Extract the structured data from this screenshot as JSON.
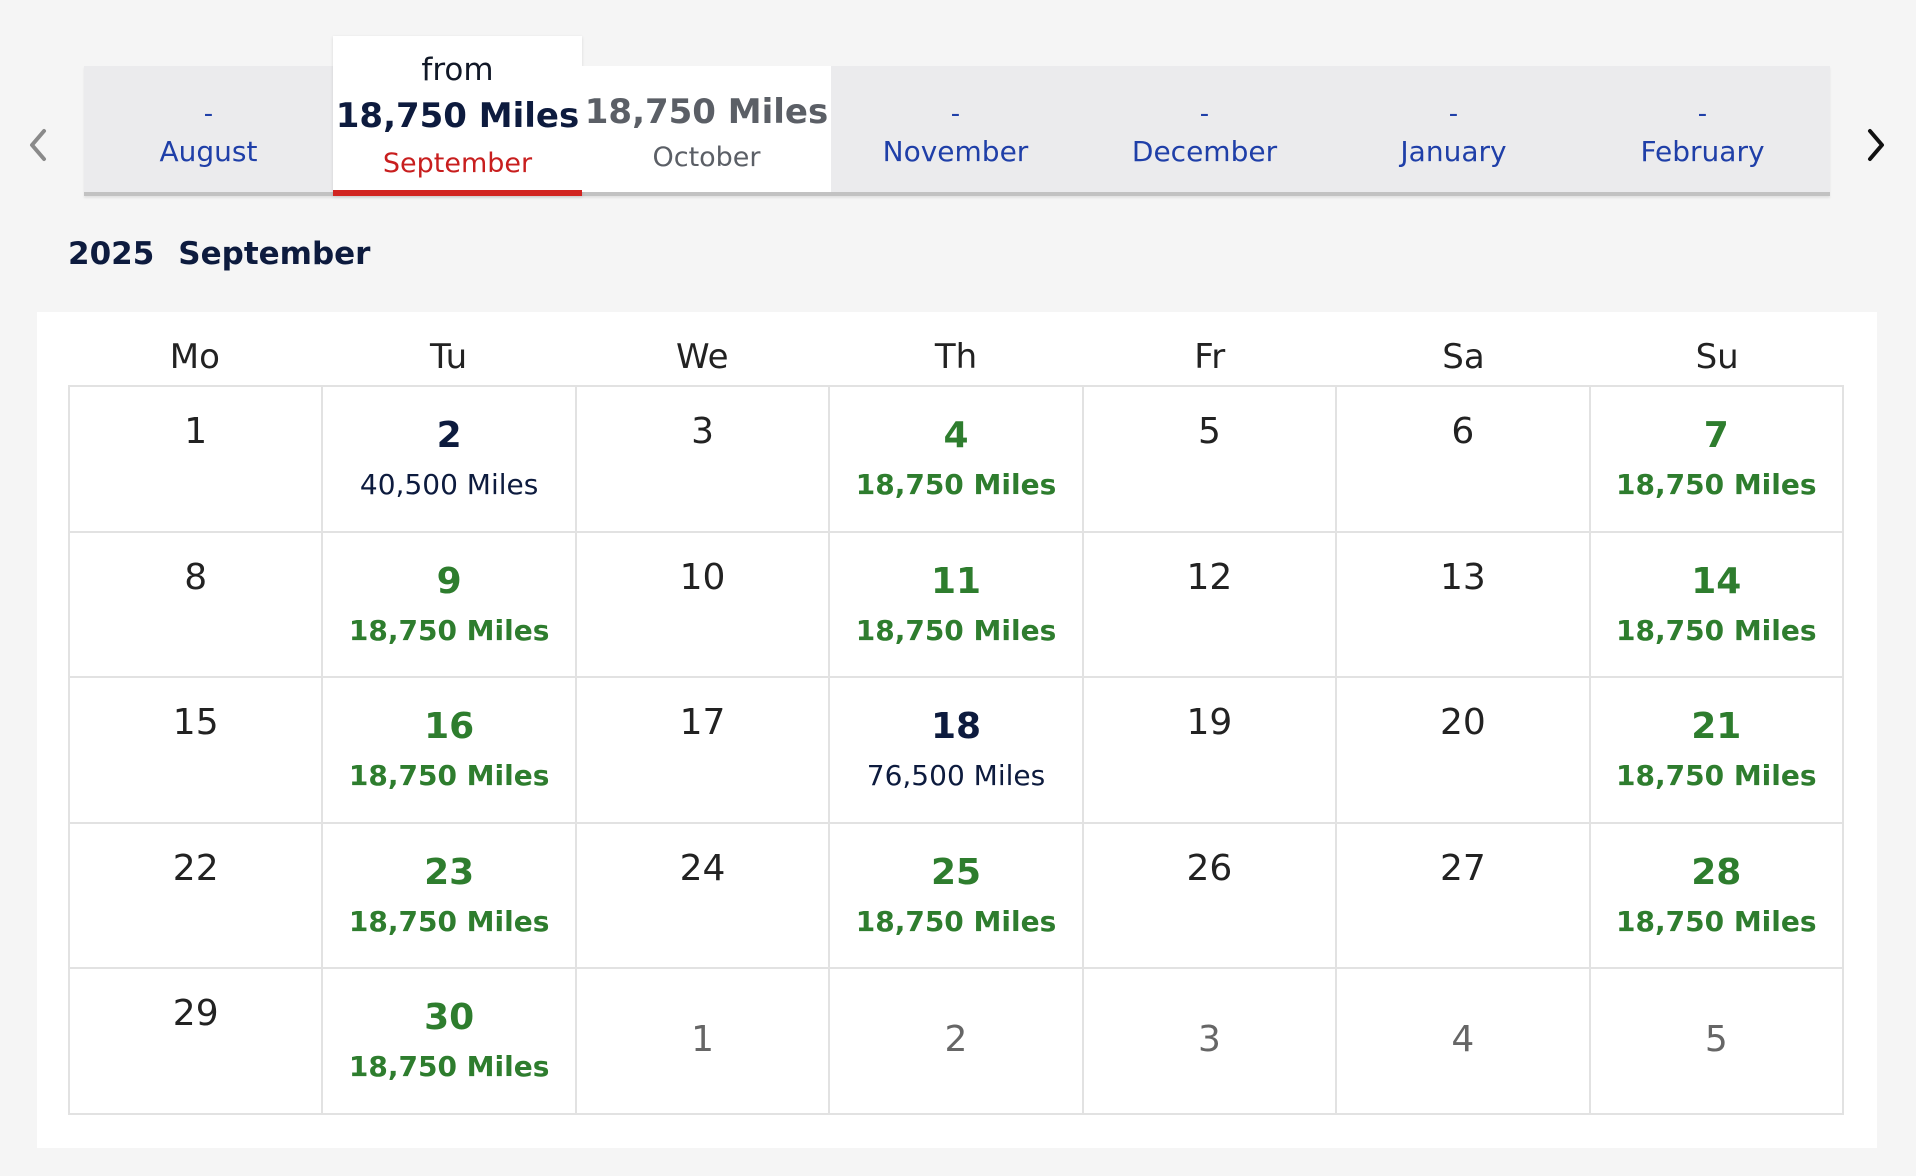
{
  "nav": {
    "prev_icon": "chevron-left-icon",
    "next_icon": "chevron-right-icon"
  },
  "months": [
    {
      "price": "-",
      "name": "August"
    },
    {
      "from": "from",
      "price": "18,750 Miles",
      "name": "September",
      "selected": true
    },
    {
      "price": "18,750 Miles",
      "name": "October"
    },
    {
      "price": "-",
      "name": "November"
    },
    {
      "price": "-",
      "name": "December"
    },
    {
      "price": "-",
      "name": "January"
    },
    {
      "price": "-",
      "name": "February"
    }
  ],
  "calendar": {
    "year": "2025",
    "month": "September",
    "weekdays": [
      "Mo",
      "Tu",
      "We",
      "Th",
      "Fr",
      "Sa",
      "Su"
    ],
    "days": [
      {
        "day": "1"
      },
      {
        "day": "2",
        "miles": "40,500 Miles"
      },
      {
        "day": "3"
      },
      {
        "day": "4",
        "miles": "18,750 Miles",
        "lowest": true
      },
      {
        "day": "5"
      },
      {
        "day": "6"
      },
      {
        "day": "7",
        "miles": "18,750 Miles",
        "lowest": true
      },
      {
        "day": "8"
      },
      {
        "day": "9",
        "miles": "18,750 Miles",
        "lowest": true
      },
      {
        "day": "10"
      },
      {
        "day": "11",
        "miles": "18,750 Miles",
        "lowest": true
      },
      {
        "day": "12"
      },
      {
        "day": "13"
      },
      {
        "day": "14",
        "miles": "18,750 Miles",
        "lowest": true
      },
      {
        "day": "15"
      },
      {
        "day": "16",
        "miles": "18,750 Miles",
        "lowest": true
      },
      {
        "day": "17"
      },
      {
        "day": "18",
        "miles": "76,500 Miles"
      },
      {
        "day": "19"
      },
      {
        "day": "20"
      },
      {
        "day": "21",
        "miles": "18,750 Miles",
        "lowest": true
      },
      {
        "day": "22"
      },
      {
        "day": "23",
        "miles": "18,750 Miles",
        "lowest": true
      },
      {
        "day": "24"
      },
      {
        "day": "25",
        "miles": "18,750 Miles",
        "lowest": true
      },
      {
        "day": "26"
      },
      {
        "day": "27"
      },
      {
        "day": "28",
        "miles": "18,750 Miles",
        "lowest": true
      },
      {
        "day": "29"
      },
      {
        "day": "30",
        "miles": "18,750 Miles",
        "lowest": true
      },
      {
        "day": "1",
        "other_month": true
      },
      {
        "day": "2",
        "other_month": true
      },
      {
        "day": "3",
        "other_month": true
      },
      {
        "day": "4",
        "other_month": true
      },
      {
        "day": "5",
        "other_month": true
      }
    ]
  },
  "colors": {
    "accent_red": "#d12420",
    "available_green": "#2e7d2e",
    "link_blue": "#1f3fa8",
    "navy": "#0d1b3e"
  }
}
